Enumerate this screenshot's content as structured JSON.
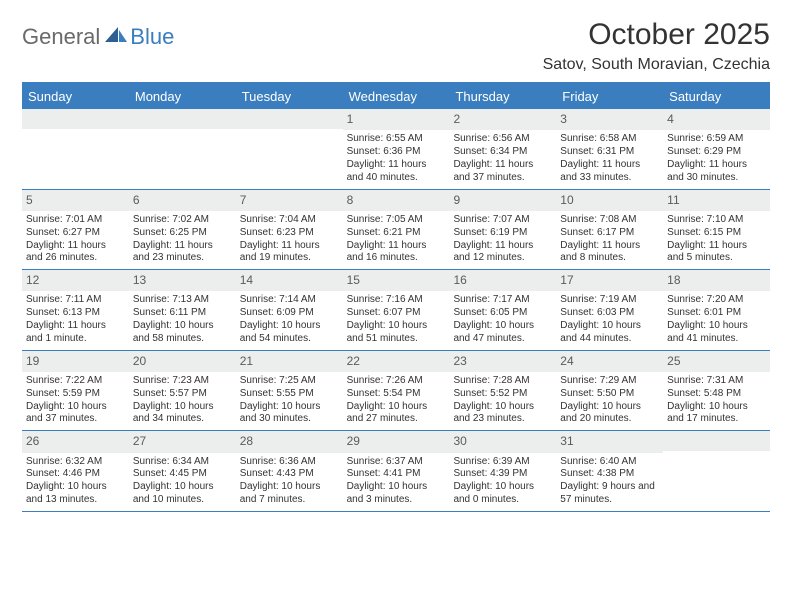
{
  "brand": {
    "part1": "General",
    "part2": "Blue"
  },
  "title": "October 2025",
  "location": "Satov, South Moravian, Czechia",
  "colors": {
    "accent": "#3a7ebf",
    "daynum_bg": "#eceded",
    "text": "#333333",
    "logo_gray": "#6a6a6a"
  },
  "dow": [
    "Sunday",
    "Monday",
    "Tuesday",
    "Wednesday",
    "Thursday",
    "Friday",
    "Saturday"
  ],
  "weeks": [
    [
      {
        "n": "",
        "sr": "",
        "ss": "",
        "dl": ""
      },
      {
        "n": "",
        "sr": "",
        "ss": "",
        "dl": ""
      },
      {
        "n": "",
        "sr": "",
        "ss": "",
        "dl": ""
      },
      {
        "n": "1",
        "sr": "Sunrise: 6:55 AM",
        "ss": "Sunset: 6:36 PM",
        "dl": "Daylight: 11 hours and 40 minutes."
      },
      {
        "n": "2",
        "sr": "Sunrise: 6:56 AM",
        "ss": "Sunset: 6:34 PM",
        "dl": "Daylight: 11 hours and 37 minutes."
      },
      {
        "n": "3",
        "sr": "Sunrise: 6:58 AM",
        "ss": "Sunset: 6:31 PM",
        "dl": "Daylight: 11 hours and 33 minutes."
      },
      {
        "n": "4",
        "sr": "Sunrise: 6:59 AM",
        "ss": "Sunset: 6:29 PM",
        "dl": "Daylight: 11 hours and 30 minutes."
      }
    ],
    [
      {
        "n": "5",
        "sr": "Sunrise: 7:01 AM",
        "ss": "Sunset: 6:27 PM",
        "dl": "Daylight: 11 hours and 26 minutes."
      },
      {
        "n": "6",
        "sr": "Sunrise: 7:02 AM",
        "ss": "Sunset: 6:25 PM",
        "dl": "Daylight: 11 hours and 23 minutes."
      },
      {
        "n": "7",
        "sr": "Sunrise: 7:04 AM",
        "ss": "Sunset: 6:23 PM",
        "dl": "Daylight: 11 hours and 19 minutes."
      },
      {
        "n": "8",
        "sr": "Sunrise: 7:05 AM",
        "ss": "Sunset: 6:21 PM",
        "dl": "Daylight: 11 hours and 16 minutes."
      },
      {
        "n": "9",
        "sr": "Sunrise: 7:07 AM",
        "ss": "Sunset: 6:19 PM",
        "dl": "Daylight: 11 hours and 12 minutes."
      },
      {
        "n": "10",
        "sr": "Sunrise: 7:08 AM",
        "ss": "Sunset: 6:17 PM",
        "dl": "Daylight: 11 hours and 8 minutes."
      },
      {
        "n": "11",
        "sr": "Sunrise: 7:10 AM",
        "ss": "Sunset: 6:15 PM",
        "dl": "Daylight: 11 hours and 5 minutes."
      }
    ],
    [
      {
        "n": "12",
        "sr": "Sunrise: 7:11 AM",
        "ss": "Sunset: 6:13 PM",
        "dl": "Daylight: 11 hours and 1 minute."
      },
      {
        "n": "13",
        "sr": "Sunrise: 7:13 AM",
        "ss": "Sunset: 6:11 PM",
        "dl": "Daylight: 10 hours and 58 minutes."
      },
      {
        "n": "14",
        "sr": "Sunrise: 7:14 AM",
        "ss": "Sunset: 6:09 PM",
        "dl": "Daylight: 10 hours and 54 minutes."
      },
      {
        "n": "15",
        "sr": "Sunrise: 7:16 AM",
        "ss": "Sunset: 6:07 PM",
        "dl": "Daylight: 10 hours and 51 minutes."
      },
      {
        "n": "16",
        "sr": "Sunrise: 7:17 AM",
        "ss": "Sunset: 6:05 PM",
        "dl": "Daylight: 10 hours and 47 minutes."
      },
      {
        "n": "17",
        "sr": "Sunrise: 7:19 AM",
        "ss": "Sunset: 6:03 PM",
        "dl": "Daylight: 10 hours and 44 minutes."
      },
      {
        "n": "18",
        "sr": "Sunrise: 7:20 AM",
        "ss": "Sunset: 6:01 PM",
        "dl": "Daylight: 10 hours and 41 minutes."
      }
    ],
    [
      {
        "n": "19",
        "sr": "Sunrise: 7:22 AM",
        "ss": "Sunset: 5:59 PM",
        "dl": "Daylight: 10 hours and 37 minutes."
      },
      {
        "n": "20",
        "sr": "Sunrise: 7:23 AM",
        "ss": "Sunset: 5:57 PM",
        "dl": "Daylight: 10 hours and 34 minutes."
      },
      {
        "n": "21",
        "sr": "Sunrise: 7:25 AM",
        "ss": "Sunset: 5:55 PM",
        "dl": "Daylight: 10 hours and 30 minutes."
      },
      {
        "n": "22",
        "sr": "Sunrise: 7:26 AM",
        "ss": "Sunset: 5:54 PM",
        "dl": "Daylight: 10 hours and 27 minutes."
      },
      {
        "n": "23",
        "sr": "Sunrise: 7:28 AM",
        "ss": "Sunset: 5:52 PM",
        "dl": "Daylight: 10 hours and 23 minutes."
      },
      {
        "n": "24",
        "sr": "Sunrise: 7:29 AM",
        "ss": "Sunset: 5:50 PM",
        "dl": "Daylight: 10 hours and 20 minutes."
      },
      {
        "n": "25",
        "sr": "Sunrise: 7:31 AM",
        "ss": "Sunset: 5:48 PM",
        "dl": "Daylight: 10 hours and 17 minutes."
      }
    ],
    [
      {
        "n": "26",
        "sr": "Sunrise: 6:32 AM",
        "ss": "Sunset: 4:46 PM",
        "dl": "Daylight: 10 hours and 13 minutes."
      },
      {
        "n": "27",
        "sr": "Sunrise: 6:34 AM",
        "ss": "Sunset: 4:45 PM",
        "dl": "Daylight: 10 hours and 10 minutes."
      },
      {
        "n": "28",
        "sr": "Sunrise: 6:36 AM",
        "ss": "Sunset: 4:43 PM",
        "dl": "Daylight: 10 hours and 7 minutes."
      },
      {
        "n": "29",
        "sr": "Sunrise: 6:37 AM",
        "ss": "Sunset: 4:41 PM",
        "dl": "Daylight: 10 hours and 3 minutes."
      },
      {
        "n": "30",
        "sr": "Sunrise: 6:39 AM",
        "ss": "Sunset: 4:39 PM",
        "dl": "Daylight: 10 hours and 0 minutes."
      },
      {
        "n": "31",
        "sr": "Sunrise: 6:40 AM",
        "ss": "Sunset: 4:38 PM",
        "dl": "Daylight: 9 hours and 57 minutes."
      },
      {
        "n": "",
        "sr": "",
        "ss": "",
        "dl": ""
      }
    ]
  ]
}
